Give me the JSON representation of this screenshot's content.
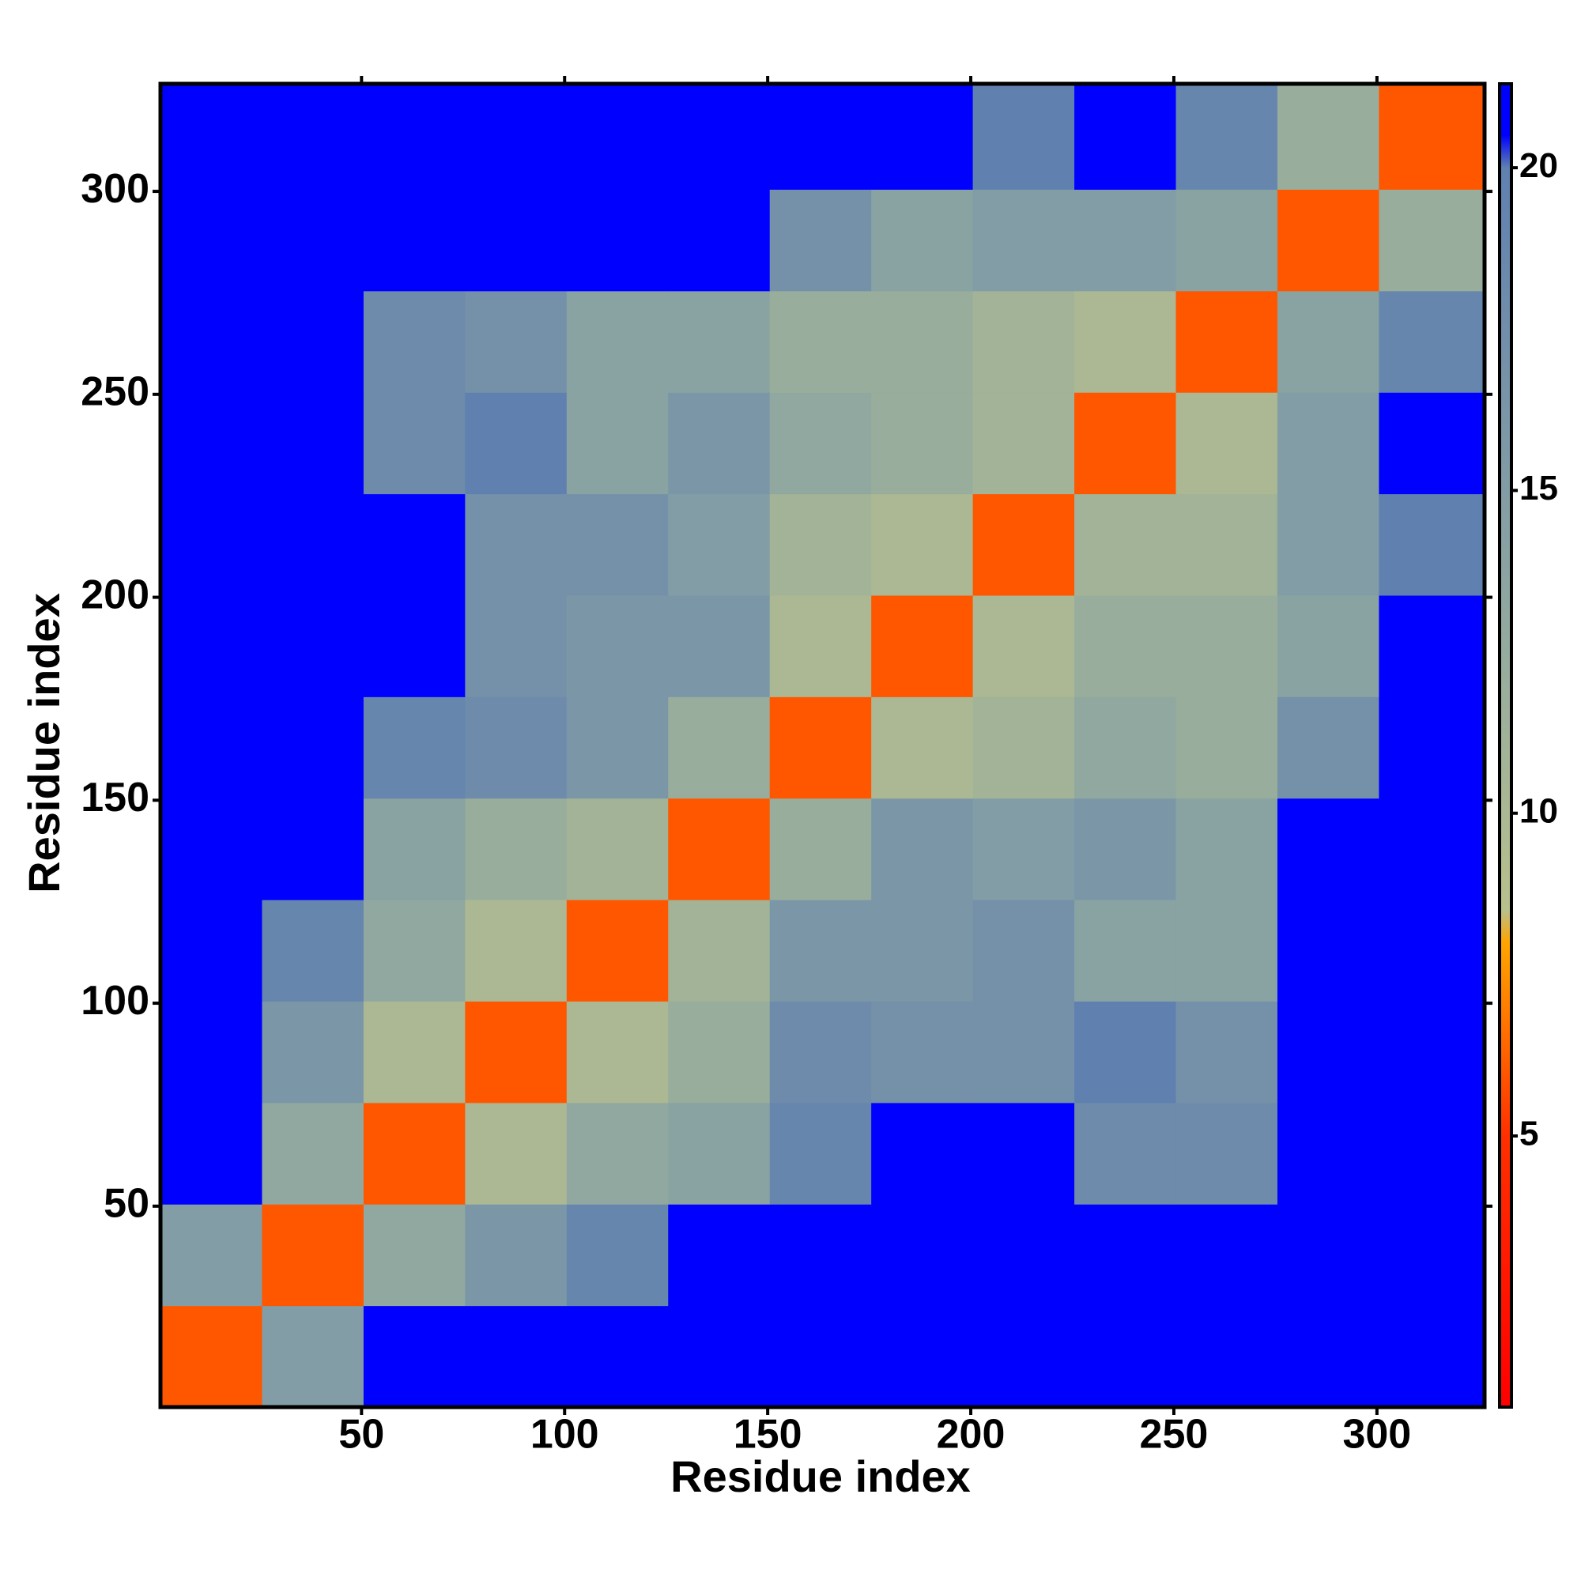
{
  "chart_data": {
    "type": "heatmap",
    "xlabel": "Residue index",
    "ylabel": "Residue index",
    "bins": [
      0.5,
      25.5,
      50.5,
      75.5,
      100.5,
      125.5,
      150.5,
      175.5,
      200.5,
      225.5,
      250.5,
      275.5,
      300.5,
      326.5
    ],
    "z": [
      [
        6,
        15,
        21,
        21,
        21,
        21,
        21,
        21,
        21,
        21,
        21,
        21,
        21
      ],
      [
        15,
        6,
        13,
        16,
        19,
        21,
        21,
        21,
        21,
        21,
        21,
        21,
        21
      ],
      [
        21,
        13,
        6,
        10,
        13,
        14,
        19,
        21,
        21,
        18,
        18,
        21,
        21
      ],
      [
        21,
        16,
        10,
        6,
        10,
        12,
        18,
        17,
        17,
        20,
        17,
        21,
        21
      ],
      [
        21,
        19,
        13,
        10,
        6,
        11,
        16,
        16,
        17,
        14,
        14,
        21,
        21
      ],
      [
        21,
        21,
        14,
        12,
        11,
        6,
        12,
        16,
        15,
        16,
        14,
        21,
        21
      ],
      [
        21,
        21,
        19,
        18,
        16,
        12,
        6,
        10,
        11,
        13,
        12,
        17,
        21
      ],
      [
        21,
        21,
        21,
        17,
        16,
        16,
        10,
        6,
        10,
        12,
        12,
        14,
        21
      ],
      [
        21,
        21,
        21,
        17,
        17,
        15,
        11,
        10,
        6,
        11,
        11,
        15,
        20
      ],
      [
        21,
        21,
        18,
        20,
        14,
        16,
        13,
        12,
        11,
        6,
        10,
        15,
        21
      ],
      [
        21,
        21,
        18,
        17,
        14,
        14,
        12,
        12,
        11,
        10,
        6,
        14,
        19
      ],
      [
        21,
        21,
        21,
        21,
        21,
        21,
        17,
        14,
        15,
        15,
        14,
        6,
        12
      ],
      [
        21,
        21,
        21,
        21,
        21,
        21,
        21,
        21,
        20,
        21,
        19,
        12,
        6
      ]
    ],
    "xlim": [
      0.5,
      326.5
    ],
    "ylim": [
      0.5,
      326.5
    ],
    "xticks": [
      50,
      100,
      150,
      200,
      250,
      300
    ],
    "yticks": [
      50,
      100,
      150,
      200,
      250,
      300
    ],
    "clim": [
      0.8,
      21.3
    ],
    "cticks": [
      5,
      10,
      15,
      20
    ],
    "colormap": [
      {
        "value": 0.8,
        "color": "#ff0000"
      },
      {
        "value": 5,
        "color": "#ff3000"
      },
      {
        "value": 8,
        "color": "#ffa500"
      },
      {
        "value": 8.5,
        "color": "#b8c08c"
      },
      {
        "value": 13,
        "color": "#90a8a0"
      },
      {
        "value": 20,
        "color": "#6080b0"
      },
      {
        "value": 20.5,
        "color": "#0000ff"
      },
      {
        "value": 21.3,
        "color": "#0000ff"
      }
    ]
  }
}
